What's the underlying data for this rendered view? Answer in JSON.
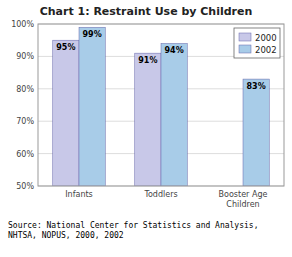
{
  "chart_data": {
    "type": "bar",
    "title": "Chart 1: Restraint Use by Children",
    "categories": [
      "Infants",
      "Toddlers",
      "Booster Age\nChildren"
    ],
    "series": [
      {
        "name": "2000",
        "color": "#C8C8E8",
        "values": [
          95,
          91,
          null
        ],
        "value_labels": [
          "95%",
          "91%",
          null
        ]
      },
      {
        "name": "2002",
        "color": "#A8CCE8",
        "values": [
          99,
          94,
          83
        ],
        "value_labels": [
          "99%",
          "94%",
          "83%"
        ]
      }
    ],
    "ylim": [
      50,
      100
    ],
    "yticks": [
      {
        "value": 50,
        "label": "50%"
      },
      {
        "value": 60,
        "label": "60%"
      },
      {
        "value": 70,
        "label": "70%"
      },
      {
        "value": 80,
        "label": "80%"
      },
      {
        "value": 90,
        "label": "90%"
      },
      {
        "value": 100,
        "label": "100%"
      }
    ],
    "grid": true,
    "legend": "upper right",
    "data_labels": true,
    "annotations": [
      "Source: National Center for Statistics and Analysis,\nNHTSA, NOPUS, 2000, 2002"
    ]
  }
}
